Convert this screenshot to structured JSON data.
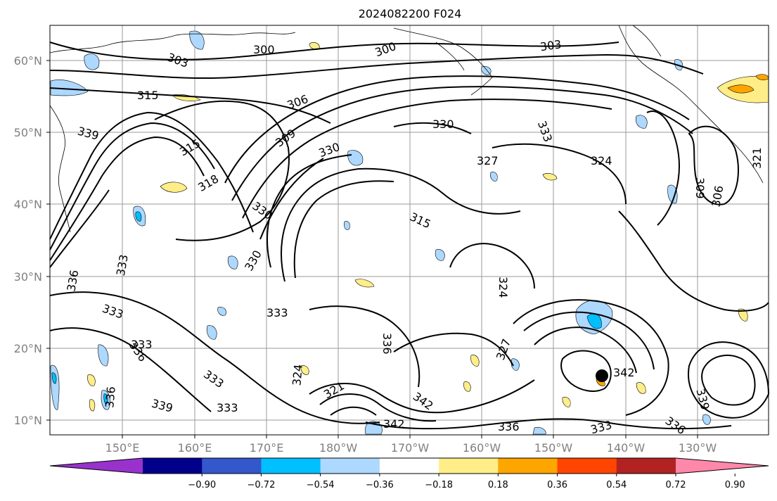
{
  "title": "2024082200 F024",
  "map": {
    "lat_labels": [
      "60°N",
      "50°N",
      "40°N",
      "30°N",
      "20°N",
      "10°N"
    ],
    "lon_labels": [
      "150°E",
      "160°E",
      "170°E",
      "180°W",
      "170°W",
      "160°W",
      "150°W",
      "140°W",
      "130°W"
    ],
    "contour_labels": [
      "300",
      "300",
      "303",
      "303",
      "306",
      "315",
      "315",
      "318",
      "309",
      "327",
      "330",
      "330",
      "333",
      "324",
      "321",
      "309",
      "306",
      "315",
      "339",
      "330",
      "336",
      "333",
      "333",
      "330",
      "333",
      "336",
      "333",
      "339",
      "336",
      "333",
      "333",
      "324",
      "321",
      "342",
      "342",
      "336",
      "333",
      "342",
      "339",
      "336",
      "336",
      "327",
      "324"
    ]
  },
  "colorbar": {
    "ticks": [
      "−0.90",
      "−0.72",
      "−0.54",
      "−0.36",
      "−0.18",
      "0.18",
      "0.36",
      "0.54",
      "0.72",
      "0.90"
    ],
    "colors": [
      "#9932cc",
      "#00008b",
      "#3457cc",
      "#00bfff",
      "#add8ff",
      "#ffffff",
      "#ffee88",
      "#ffa500",
      "#ff4500",
      "#b22222",
      "#ff88aa"
    ]
  }
}
